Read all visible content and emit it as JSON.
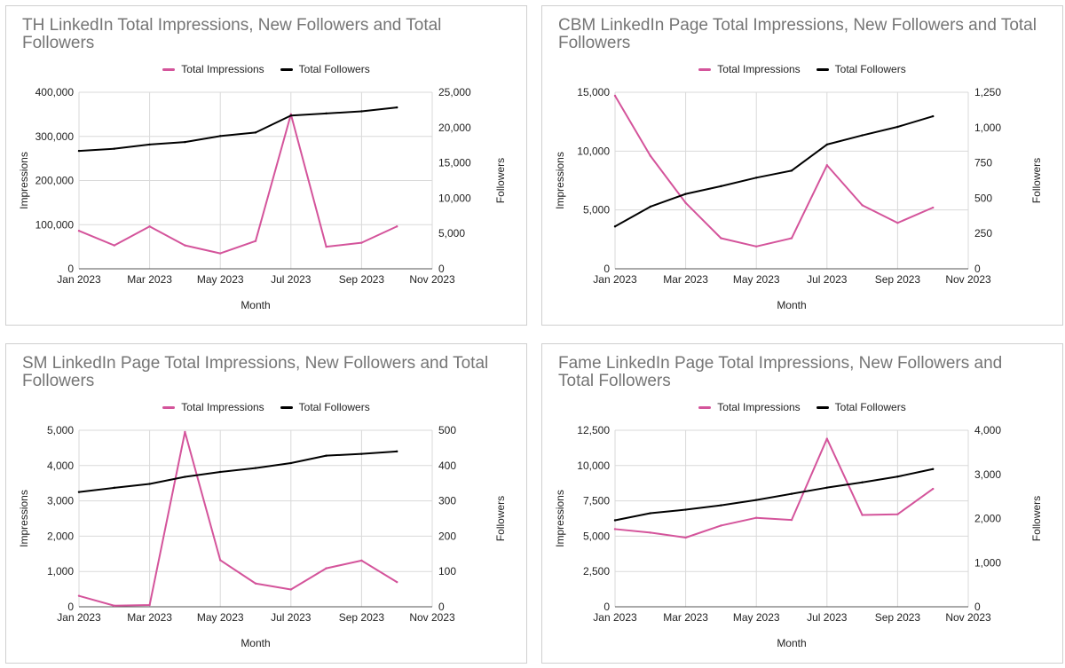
{
  "chart_data": [
    {
      "type": "line",
      "title": "TH LinkedIn Total Impressions, New Followers and Total Followers",
      "xlabel": "Month",
      "ylabel": "Impressions",
      "y2label": "Followers",
      "x_ticks": [
        "Jan 2023",
        "Mar 2023",
        "May 2023",
        "Jul 2023",
        "Sep 2023",
        "Nov 2023"
      ],
      "x": [
        "Jan 2023",
        "Feb 2023",
        "Mar 2023",
        "Apr 2023",
        "May 2023",
        "Jun 2023",
        "Jul 2023",
        "Aug 2023",
        "Sep 2023",
        "Oct 2023"
      ],
      "ylim": [
        0,
        400000
      ],
      "y_ticks": [
        "0",
        "100,000",
        "200,000",
        "300,000",
        "400,000"
      ],
      "y2lim": [
        0,
        25000
      ],
      "y2_ticks": [
        "0",
        "5,000",
        "10,000",
        "15,000",
        "20,000",
        "25,000"
      ],
      "legend_position": "top",
      "grid": true,
      "series": [
        {
          "name": "Total Impressions",
          "axis": "left",
          "color": "#d4549b",
          "values": [
            86000,
            53000,
            96000,
            53000,
            35000,
            63000,
            350000,
            50000,
            59000,
            96000
          ]
        },
        {
          "name": "Total Followers",
          "axis": "right",
          "color": "#000000",
          "values": [
            16700,
            17000,
            17600,
            17950,
            18800,
            19300,
            21700,
            22000,
            22300,
            22850
          ]
        }
      ]
    },
    {
      "type": "line",
      "title": "CBM LinkedIn Page Total Impressions, New Followers and Total Followers",
      "xlabel": "Month",
      "ylabel": "Impressions",
      "y2label": "Followers",
      "x_ticks": [
        "Jan 2023",
        "Mar 2023",
        "May 2023",
        "Jul 2023",
        "Sep 2023",
        "Nov 2023"
      ],
      "x": [
        "Jan 2023",
        "Feb 2023",
        "Mar 2023",
        "Apr 2023",
        "May 2023",
        "Jun 2023",
        "Jul 2023",
        "Aug 2023",
        "Sep 2023",
        "Oct 2023"
      ],
      "ylim": [
        0,
        15000
      ],
      "y_ticks": [
        "0",
        "5,000",
        "10,000",
        "15,000"
      ],
      "y2lim": [
        0,
        1250
      ],
      "y2_ticks": [
        "0",
        "250",
        "500",
        "750",
        "1,000",
        "1,250"
      ],
      "legend_position": "top",
      "grid": true,
      "series": [
        {
          "name": "Total Impressions",
          "axis": "left",
          "color": "#d4549b",
          "values": [
            14700,
            9600,
            5600,
            2600,
            1900,
            2600,
            8800,
            5400,
            3900,
            5200
          ]
        },
        {
          "name": "Total Followers",
          "axis": "right",
          "color": "#000000",
          "values": [
            300,
            440,
            530,
            585,
            645,
            695,
            880,
            945,
            1005,
            1080
          ]
        }
      ]
    },
    {
      "type": "line",
      "title": "SM LinkedIn Page Total Impressions, New Followers and Total Followers",
      "xlabel": "Month",
      "ylabel": "Impressions",
      "y2label": "Followers",
      "x_ticks": [
        "Jan 2023",
        "Mar 2023",
        "May 2023",
        "Jul 2023",
        "Sep 2023",
        "Nov 2023"
      ],
      "x": [
        "Jan 2023",
        "Feb 2023",
        "Mar 2023",
        "Apr 2023",
        "May 2023",
        "Jun 2023",
        "Jul 2023",
        "Aug 2023",
        "Sep 2023",
        "Oct 2023"
      ],
      "ylim": [
        0,
        5000
      ],
      "y_ticks": [
        "0",
        "1,000",
        "2,000",
        "3,000",
        "4,000",
        "5,000"
      ],
      "y2lim": [
        0,
        500
      ],
      "y2_ticks": [
        "0",
        "100",
        "200",
        "300",
        "400",
        "500"
      ],
      "legend_position": "top",
      "grid": true,
      "series": [
        {
          "name": "Total Impressions",
          "axis": "left",
          "color": "#d4549b",
          "values": [
            310,
            30,
            50,
            4950,
            1320,
            660,
            490,
            1090,
            1310,
            700
          ]
        },
        {
          "name": "Total Followers",
          "axis": "right",
          "color": "#000000",
          "values": [
            325,
            337,
            348,
            368,
            382,
            393,
            407,
            428,
            433,
            440
          ]
        }
      ]
    },
    {
      "type": "line",
      "title": "Fame LinkedIn Page Total Impressions, New Followers and Total Followers",
      "xlabel": "Month",
      "ylabel": "Impressions",
      "y2label": "Followers",
      "x_ticks": [
        "Jan 2023",
        "Mar 2023",
        "May 2023",
        "Jul 2023",
        "Sep 2023",
        "Nov 2023"
      ],
      "x": [
        "Jan 2023",
        "Feb 2023",
        "Mar 2023",
        "Apr 2023",
        "May 2023",
        "Jun 2023",
        "Jul 2023",
        "Aug 2023",
        "Sep 2023",
        "Oct 2023"
      ],
      "ylim": [
        0,
        12500
      ],
      "y_ticks": [
        "0",
        "2,500",
        "5,000",
        "7,500",
        "10,000",
        "12,500"
      ],
      "y2lim": [
        0,
        4000
      ],
      "y2_ticks": [
        "0",
        "1,000",
        "2,000",
        "3,000",
        "4,000"
      ],
      "legend_position": "top",
      "grid": true,
      "series": [
        {
          "name": "Total Impressions",
          "axis": "left",
          "color": "#d4549b",
          "values": [
            5500,
            5250,
            4900,
            5750,
            6300,
            6150,
            11900,
            6500,
            6550,
            8350
          ]
        },
        {
          "name": "Total Followers",
          "axis": "right",
          "color": "#000000",
          "values": [
            1960,
            2120,
            2200,
            2300,
            2420,
            2560,
            2700,
            2820,
            2950,
            3120
          ]
        }
      ]
    }
  ]
}
